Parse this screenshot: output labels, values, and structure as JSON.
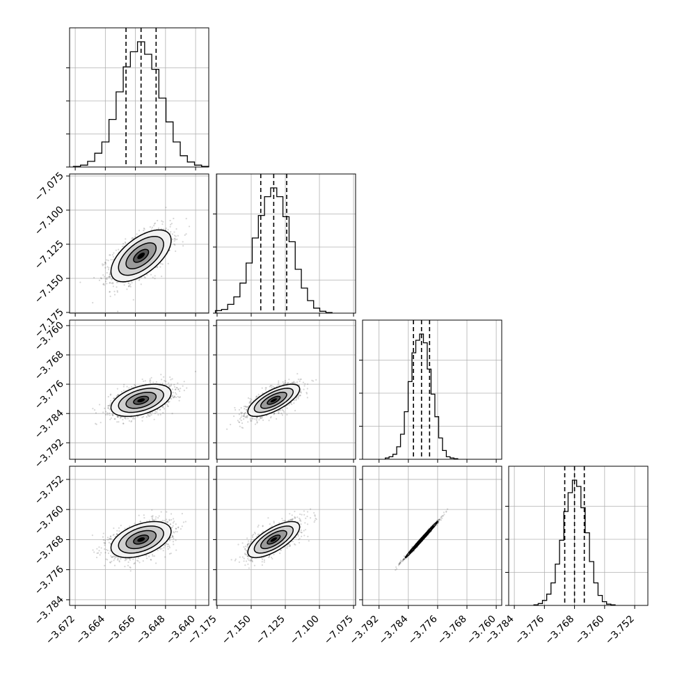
{
  "chart_data": {
    "type": "corner",
    "grid": true,
    "quantiles": [
      0.16,
      0.5,
      0.84
    ],
    "parameters": [
      {
        "id": "p0",
        "center": -3.6545,
        "sigma": 0.004,
        "range": [
          -3.6735,
          -3.6365
        ],
        "ticks": [
          -3.672,
          -3.664,
          -3.656,
          -3.648,
          -3.64
        ],
        "tick_labels": [
          "−3.672",
          "−3.664",
          "−3.656",
          "−3.648",
          "−3.640"
        ],
        "quantile_values": [
          -3.6585,
          -3.6545,
          -3.6505
        ],
        "hist_heights": [
          0.005,
          0.015,
          0.045,
          0.11,
          0.2,
          0.38,
          0.6,
          0.8,
          0.92,
          1.0,
          0.9,
          0.78,
          0.55,
          0.36,
          0.2,
          0.09,
          0.04,
          0.015,
          0.005
        ]
      },
      {
        "id": "p1",
        "center": -7.1335,
        "sigma": 0.0095,
        "range": [
          -7.1755,
          -7.0735
        ],
        "ticks": [
          -7.175,
          -7.15,
          -7.125,
          -7.1,
          -7.075
        ],
        "tick_labels": [
          "−7.175",
          "−7.150",
          "−7.125",
          "−7.100",
          "−7.075"
        ],
        "quantile_values": [
          -7.143,
          -7.1335,
          -7.124
        ],
        "hist_heights": [
          0.02,
          0.03,
          0.07,
          0.13,
          0.24,
          0.4,
          0.6,
          0.78,
          0.93,
          1.0,
          0.93,
          0.77,
          0.57,
          0.35,
          0.2,
          0.1,
          0.04,
          0.015,
          0.005
        ]
      },
      {
        "id": "p2",
        "center": -3.7804,
        "sigma": 0.0022,
        "range": [
          -3.7965,
          -3.7585
        ],
        "ticks": [
          -3.792,
          -3.784,
          -3.776,
          -3.768,
          -3.76
        ],
        "tick_labels": [
          "−3.792",
          "−3.784",
          "−3.776",
          "−3.768",
          "−3.760"
        ],
        "quantile_values": [
          -3.7826,
          -3.7804,
          -3.7782
        ],
        "hist_heights": [
          0.01,
          0.02,
          0.04,
          0.1,
          0.2,
          0.38,
          0.62,
          0.85,
          0.95,
          1.0,
          0.93,
          0.72,
          0.52,
          0.34,
          0.17,
          0.07,
          0.02,
          0.01,
          0.005
        ]
      },
      {
        "id": "p3",
        "center": -3.768,
        "sigma": 0.0024,
        "range": [
          -3.7855,
          -3.7485
        ],
        "ticks": [
          -3.784,
          -3.776,
          -3.768,
          -3.76,
          -3.752
        ],
        "tick_labels": [
          "−3.784",
          "−3.776",
          "−3.768",
          "−3.760",
          "−3.752"
        ],
        "quantile_values": [
          -3.7706,
          -3.768,
          -3.7654
        ],
        "hist_heights": [
          0.005,
          0.015,
          0.04,
          0.09,
          0.18,
          0.33,
          0.52,
          0.75,
          0.9,
          1.0,
          0.95,
          0.78,
          0.58,
          0.35,
          0.18,
          0.08,
          0.03,
          0.01,
          0.005
        ]
      }
    ],
    "correlations": {
      "1_0": 0.6,
      "2_0": 0.45,
      "2_1": 0.7,
      "3_0": 0.45,
      "3_1": 0.7,
      "3_2": 0.995
    },
    "colors": {
      "line": "#000000",
      "grid": "#b0b0b0",
      "points": "#000000"
    }
  }
}
